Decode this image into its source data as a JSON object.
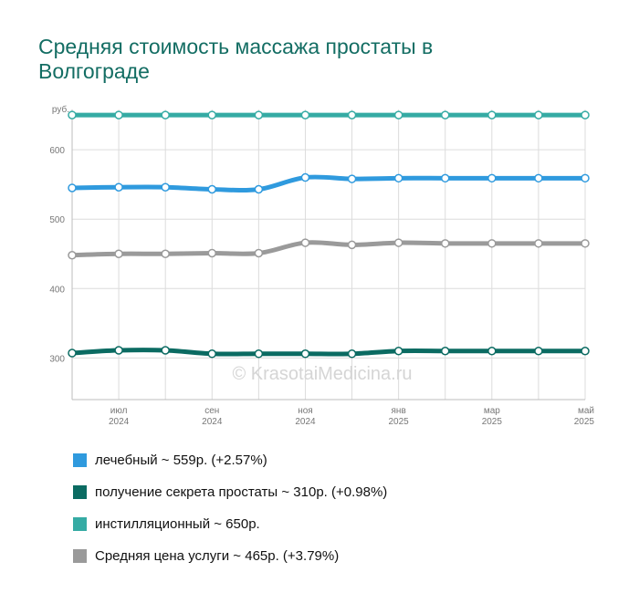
{
  "title": "Средняя стоимость массажа простаты в Волгограде",
  "chart_data": {
    "type": "line",
    "y_unit_label": "руб.",
    "ylim": [
      240,
      658
    ],
    "yticks": [
      300,
      400,
      500,
      600
    ],
    "x_labels": [
      {
        "index": 1,
        "month": "июл",
        "year": "2024"
      },
      {
        "index": 3,
        "month": "сен",
        "year": "2024"
      },
      {
        "index": 5,
        "month": "ноя",
        "year": "2024"
      },
      {
        "index": 7,
        "month": "янв",
        "year": "2025"
      },
      {
        "index": 9,
        "month": "мар",
        "year": "2025"
      },
      {
        "index": 11,
        "month": "май",
        "year": "2025"
      }
    ],
    "n_points": 12,
    "grid": true,
    "series": [
      {
        "name": "инстилляционный",
        "color": "#35aba4",
        "values": [
          650,
          650,
          650,
          650,
          650,
          650,
          650,
          650,
          650,
          650,
          650,
          650
        ]
      },
      {
        "name": "лечебный",
        "color": "#2f9ade",
        "values": [
          545,
          546,
          546,
          543,
          543,
          560,
          558,
          559,
          559,
          559,
          559,
          559
        ]
      },
      {
        "name": "Средняя цена услуги",
        "color": "#9a9a9a",
        "values": [
          448,
          450,
          450,
          451,
          451,
          466,
          463,
          466,
          465,
          465,
          465,
          465
        ]
      },
      {
        "name": "получение секрета простаты",
        "color": "#0b6b62",
        "values": [
          307,
          311,
          311,
          306,
          306,
          306,
          306,
          310,
          310,
          310,
          310,
          310
        ]
      }
    ],
    "watermark": "© KrasotaiMedicina.ru"
  },
  "legend": [
    {
      "text": "лечебный ~ 559р. (+2.57%)",
      "color": "#2f9ade"
    },
    {
      "text": "получение секрета простаты ~ 310р. (+0.98%)",
      "color": "#0b6b62"
    },
    {
      "text": "инстилляционный ~ 650р.",
      "color": "#35aba4"
    },
    {
      "text": "Средняя цена услуги ~ 465р. (+3.79%)",
      "color": "#9a9a9a"
    }
  ]
}
